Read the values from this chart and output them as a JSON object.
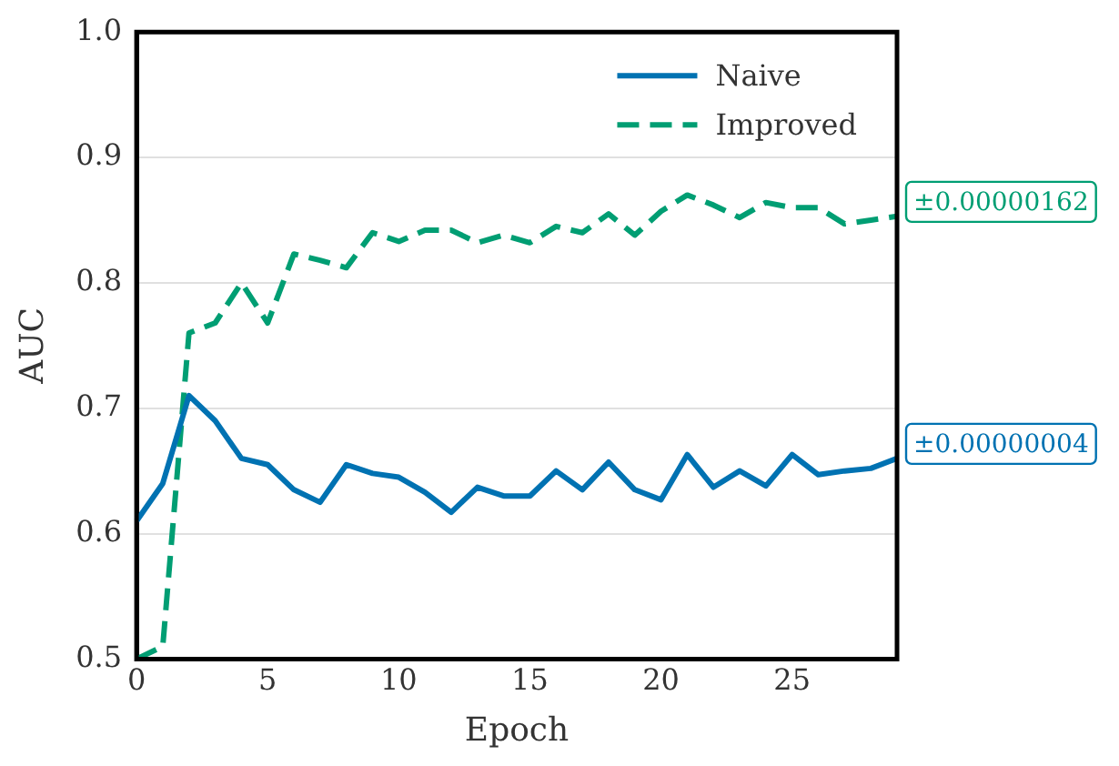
{
  "chart_data": {
    "type": "line",
    "xlabel": "Epoch",
    "ylabel": "AUC",
    "x": [
      0,
      1,
      2,
      3,
      4,
      5,
      6,
      7,
      8,
      9,
      10,
      11,
      12,
      13,
      14,
      15,
      16,
      17,
      18,
      19,
      20,
      21,
      22,
      23,
      24,
      25,
      26,
      27,
      28,
      29
    ],
    "series": [
      {
        "name": "Naive",
        "color": "#0072b2",
        "line_style": "solid",
        "values": [
          0.61,
          0.64,
          0.71,
          0.69,
          0.66,
          0.655,
          0.635,
          0.625,
          0.655,
          0.648,
          0.645,
          0.633,
          0.617,
          0.637,
          0.63,
          0.63,
          0.65,
          0.635,
          0.657,
          0.635,
          0.627,
          0.663,
          0.637,
          0.65,
          0.638,
          0.663,
          0.647,
          0.65,
          0.652,
          0.66
        ]
      },
      {
        "name": "Improved",
        "color": "#009e73",
        "line_style": "dashed",
        "values": [
          0.5,
          0.51,
          0.76,
          0.768,
          0.8,
          0.768,
          0.823,
          0.818,
          0.812,
          0.84,
          0.833,
          0.842,
          0.842,
          0.832,
          0.838,
          0.832,
          0.845,
          0.84,
          0.855,
          0.838,
          0.857,
          0.87,
          0.862,
          0.852,
          0.864,
          0.86,
          0.86,
          0.847,
          0.85,
          0.853
        ]
      }
    ],
    "annotations": [
      {
        "text": "±0.00000162",
        "x": 29,
        "y": 0.853
      },
      {
        "text": "±0.00000004",
        "x": 29,
        "y": 0.66
      }
    ],
    "xlim": [
      0,
      29
    ],
    "xticks": [
      0,
      5,
      10,
      15,
      20,
      25
    ],
    "ylim": [
      0.5,
      1.0
    ],
    "yticks": [
      0.5,
      0.6,
      0.7,
      0.8,
      0.9,
      {
        "value": 1.0,
        "label": "1.0"
      }
    ],
    "grid": "y",
    "legend": "top right",
    "marker": "none"
  }
}
